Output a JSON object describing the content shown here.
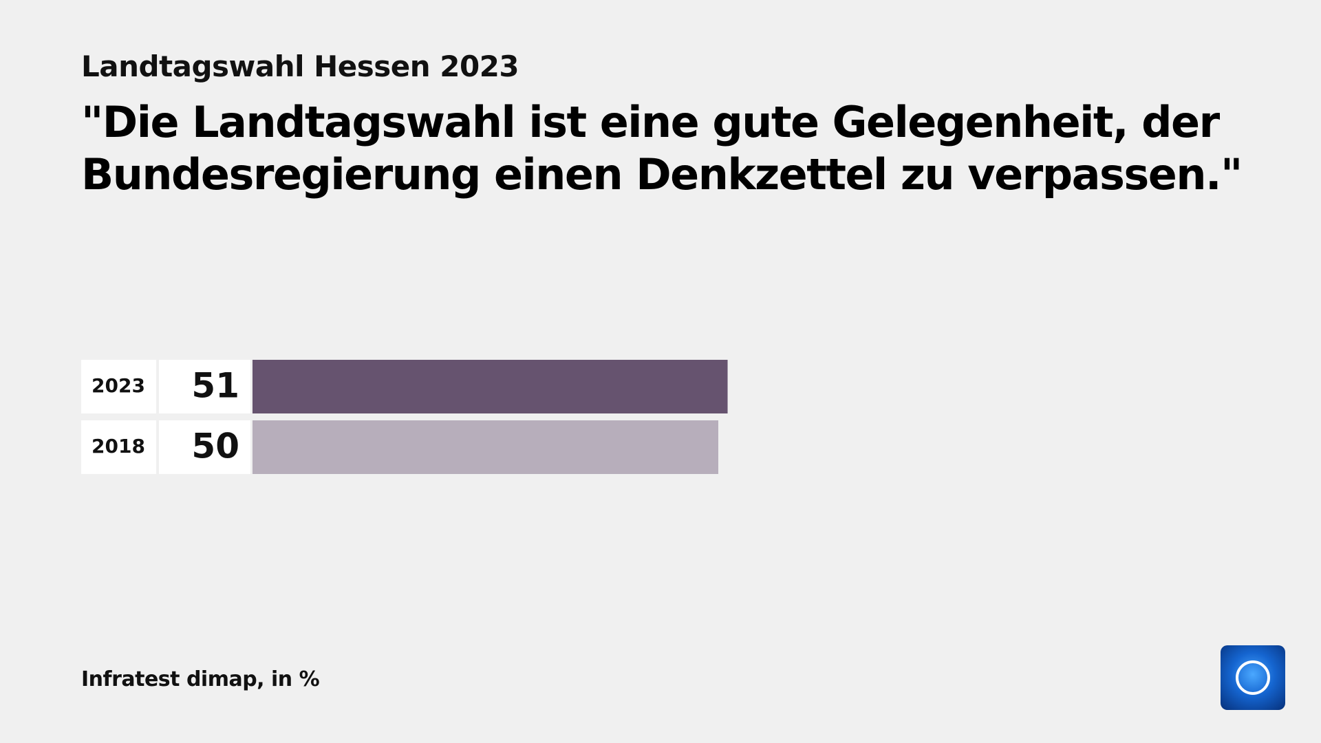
{
  "chart_data": {
    "type": "bar",
    "subtitle": "Landtagswahl Hessen 2023",
    "title": "\"Die Landtagswahl ist eine gute Gelegenheit, der Bundesregierung einen Denkzettel zu verpassen.\"",
    "categories": [
      "2023",
      "2018"
    ],
    "values": [
      51,
      50
    ],
    "colors": [
      "#66536f",
      "#b7aebb"
    ],
    "source": "Infratest dimap, in %"
  }
}
